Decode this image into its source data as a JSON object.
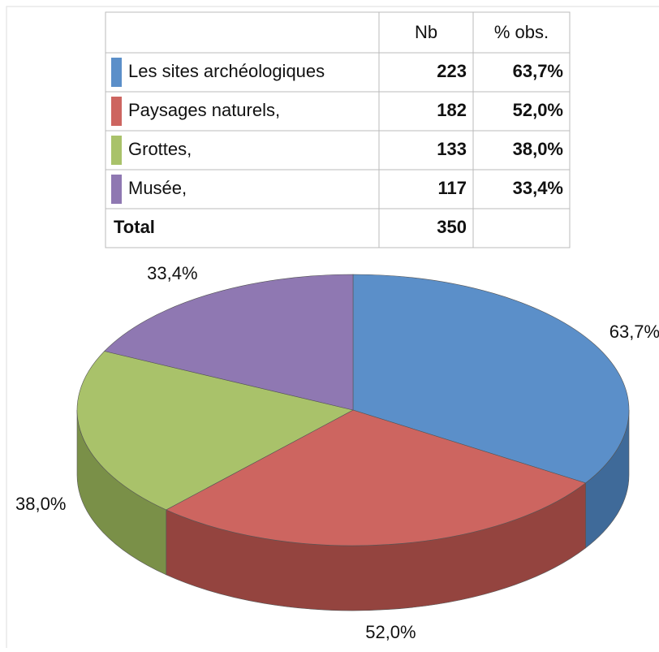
{
  "chart_data": {
    "type": "pie",
    "columns": [
      "Nb",
      "% obs."
    ],
    "categories": [
      "Les sites archéologiques",
      "Paysages naturels,",
      "Grottes,",
      "Musée,"
    ],
    "counts": [
      223,
      182,
      133,
      117
    ],
    "values": [
      63.7,
      52.0,
      38.0,
      33.4
    ],
    "value_labels": [
      "63,7%",
      "52,0%",
      "38,0%",
      "33,4%"
    ],
    "colors": [
      "#5b8fc9",
      "#cd6560",
      "#a9c26a",
      "#8f78b2"
    ],
    "side_colors": [
      "#3f6a99",
      "#94443f",
      "#7a9048",
      "#6a5688"
    ],
    "total_label": "Total",
    "total": 350
  }
}
